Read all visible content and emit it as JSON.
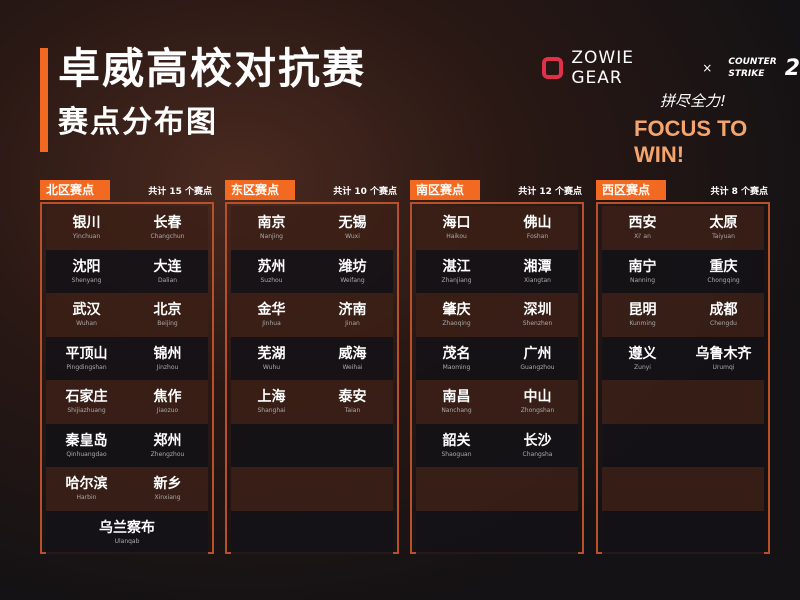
{
  "header": {
    "title": "卓威高校对抗赛",
    "subtitle": "赛点分布图"
  },
  "brand": {
    "zowie": "ZOWIE GEAR",
    "times": "×",
    "cs_line1": "COUNTER",
    "cs_line2": "STRIKE",
    "cs_num": "2",
    "slogan_cn": "拼尽全力!",
    "slogan": "FOCUS TO WIN!"
  },
  "accent": "#f26a21",
  "regions": [
    {
      "name": "北区赛点",
      "count": "共计 15 个赛点",
      "cities": [
        [
          "银川",
          "Yinchuan"
        ],
        [
          "长春",
          "Changchun"
        ],
        [
          "沈阳",
          "Shenyang"
        ],
        [
          "大连",
          "Dalian"
        ],
        [
          "武汉",
          "Wuhan"
        ],
        [
          "北京",
          "Beijing"
        ],
        [
          "平顶山",
          "Pingdingshan"
        ],
        [
          "锦州",
          "Jinzhou"
        ],
        [
          "石家庄",
          "Shijiazhuang"
        ],
        [
          "焦作",
          "Jiaozuo"
        ],
        [
          "秦皇岛",
          "Qinhuangdao"
        ],
        [
          "郑州",
          "Zhengzhou"
        ],
        [
          "哈尔滨",
          "Harbin"
        ],
        [
          "新乡",
          "Xinxiang"
        ],
        [
          "乌兰察布",
          "Ulanqab"
        ]
      ]
    },
    {
      "name": "东区赛点",
      "count": "共计 10 个赛点",
      "cities": [
        [
          "南京",
          "Nanjing"
        ],
        [
          "无锡",
          "Wuxi"
        ],
        [
          "苏州",
          "Suzhou"
        ],
        [
          "潍坊",
          "Weifang"
        ],
        [
          "金华",
          "Jinhua"
        ],
        [
          "济南",
          "Jinan"
        ],
        [
          "芜湖",
          "Wuhu"
        ],
        [
          "威海",
          "Weihai"
        ],
        [
          "上海",
          "Shanghai"
        ],
        [
          "泰安",
          "Taian"
        ]
      ]
    },
    {
      "name": "南区赛点",
      "count": "共计 12 个赛点",
      "cities": [
        [
          "海口",
          "Haikou"
        ],
        [
          "佛山",
          "Foshan"
        ],
        [
          "湛江",
          "Zhanjiang"
        ],
        [
          "湘潭",
          "Xiangtan"
        ],
        [
          "肇庆",
          "Zhaoqing"
        ],
        [
          "深圳",
          "Shenzhen"
        ],
        [
          "茂名",
          "Maoming"
        ],
        [
          "广州",
          "Guangzhou"
        ],
        [
          "南昌",
          "Nanchang"
        ],
        [
          "中山",
          "Zhongshan"
        ],
        [
          "韶关",
          "Shaoguan"
        ],
        [
          "长沙",
          "Changsha"
        ]
      ]
    },
    {
      "name": "西区赛点",
      "count": "共计 8 个赛点",
      "cities": [
        [
          "西安",
          "Xi' an"
        ],
        [
          "太原",
          "Taiyuan"
        ],
        [
          "南宁",
          "Nanning"
        ],
        [
          "重庆",
          "Chongqing"
        ],
        [
          "昆明",
          "Kunming"
        ],
        [
          "成都",
          "Chengdu"
        ],
        [
          "遵义",
          "Zunyi"
        ],
        [
          "乌鲁木齐",
          "Urumqi"
        ]
      ]
    }
  ]
}
